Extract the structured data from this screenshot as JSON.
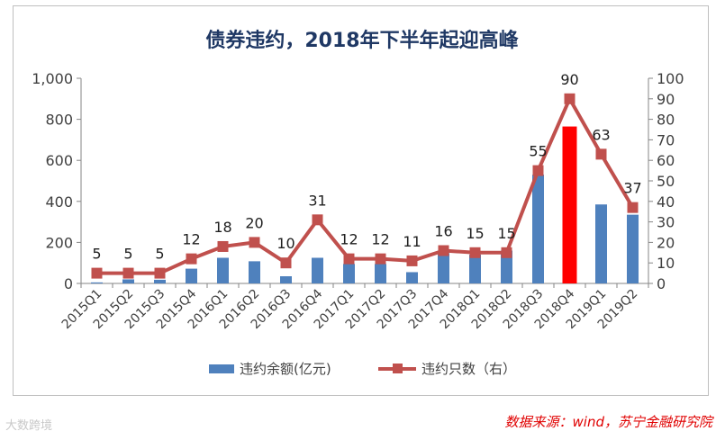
{
  "chart_data": {
    "type": "bar+line",
    "title": "债券违约，2018年下半年起迎高峰",
    "categories": [
      "2015Q1",
      "2015Q2",
      "2015Q3",
      "2015Q4",
      "2016Q1",
      "2016Q2",
      "2016Q3",
      "2016Q4",
      "2017Q1",
      "2017Q2",
      "2017Q3",
      "2017Q4",
      "2018Q1",
      "2018Q2",
      "2018Q3",
      "2018Q4",
      "2019Q1",
      "2019Q2"
    ],
    "series": [
      {
        "name": "违约余额(亿元)",
        "type": "bar",
        "axis": "left",
        "color": "#4f81bd",
        "highlight": {
          "index": 15,
          "color": "#ff0000"
        },
        "values": [
          5,
          20,
          18,
          72,
          125,
          108,
          35,
          125,
          95,
          95,
          55,
          148,
          140,
          160,
          530,
          765,
          385,
          335
        ]
      },
      {
        "name": "违约只数（右）",
        "type": "line",
        "axis": "right",
        "color": "#c0504d",
        "values": [
          5,
          5,
          5,
          12,
          18,
          20,
          10,
          31,
          12,
          12,
          11,
          16,
          15,
          15,
          55,
          90,
          63,
          37
        ],
        "labels": [
          "5",
          "5",
          "5",
          "12",
          "18",
          "20",
          "10",
          "31",
          "12",
          "12",
          "11",
          "16",
          "15",
          "15",
          "55",
          "90",
          "63",
          "37"
        ]
      }
    ],
    "y_left": {
      "min": 0,
      "max": 1000,
      "ticks": [
        "0",
        "200",
        "400",
        "600",
        "800",
        "1,000"
      ]
    },
    "y_right": {
      "min": 0,
      "max": 100,
      "ticks": [
        "0",
        "10",
        "20",
        "30",
        "40",
        "50",
        "60",
        "70",
        "80",
        "90",
        "100"
      ]
    },
    "legend_position": "bottom",
    "grid": false
  },
  "watermark": "大数跨境",
  "source": "数据来源：wind，苏宁金融研究院"
}
